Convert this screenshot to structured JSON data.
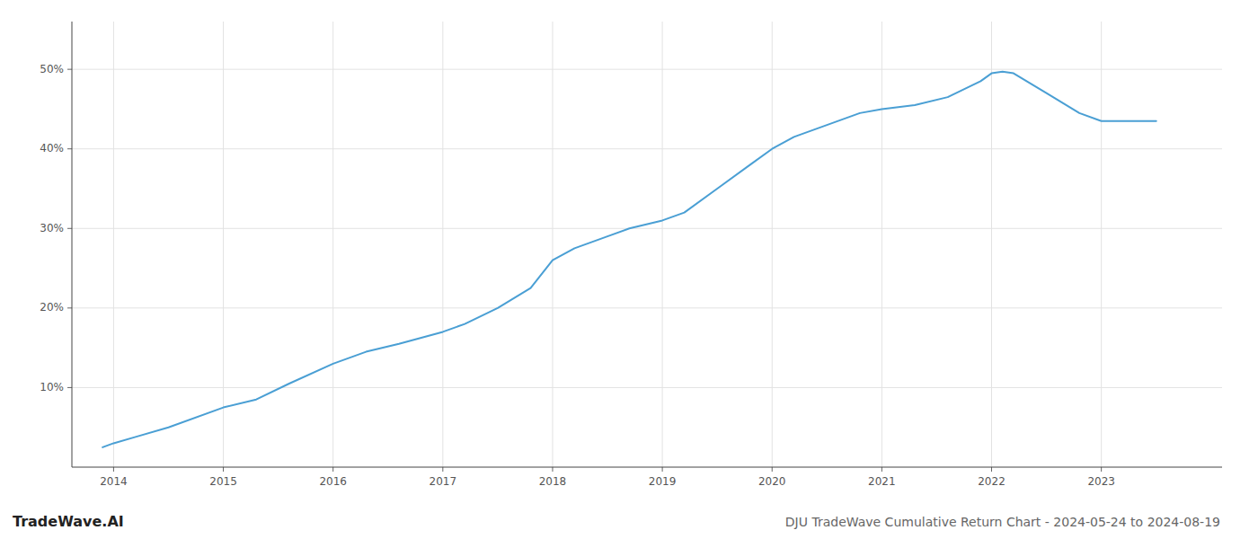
{
  "chart_data": {
    "type": "line",
    "title": "DJU TradeWave Cumulative Return Chart - 2024-05-24 to 2024-08-19",
    "annotations": [
      "TradeWave.AI"
    ],
    "x": [
      2013.9,
      2014.0,
      2014.2,
      2014.5,
      2015.0,
      2015.3,
      2015.6,
      2016.0,
      2016.3,
      2016.6,
      2017.0,
      2017.2,
      2017.5,
      2017.8,
      2018.0,
      2018.2,
      2018.5,
      2018.7,
      2019.0,
      2019.2,
      2019.5,
      2019.8,
      2020.0,
      2020.2,
      2020.5,
      2020.8,
      2021.0,
      2021.3,
      2021.6,
      2021.9,
      2022.0,
      2022.1,
      2022.2,
      2022.5,
      2022.8,
      2023.0,
      2023.5
    ],
    "values": [
      2.5,
      3.0,
      3.8,
      5.0,
      7.5,
      8.5,
      10.5,
      13.0,
      14.5,
      15.5,
      17.0,
      18.0,
      20.0,
      22.5,
      26.0,
      27.5,
      29.0,
      30.0,
      31.0,
      32.0,
      35.0,
      38.0,
      40.0,
      41.5,
      43.0,
      44.5,
      45.0,
      45.5,
      46.5,
      48.5,
      49.5,
      49.7,
      49.5,
      47.0,
      44.5,
      43.5,
      43.5
    ],
    "color": "#4a9fd4",
    "xlim": [
      2013.62,
      2024.1
    ],
    "ylim": [
      0,
      56
    ],
    "xticks": [
      2014,
      2015,
      2016,
      2017,
      2018,
      2019,
      2020,
      2021,
      2022,
      2023
    ],
    "yticks": [
      {
        "value": 10,
        "label": "10%"
      },
      {
        "value": 20,
        "label": "20%"
      },
      {
        "value": 30,
        "label": "30%"
      },
      {
        "value": 40,
        "label": "40%"
      },
      {
        "value": 50,
        "label": "50%"
      }
    ],
    "grid": true
  }
}
